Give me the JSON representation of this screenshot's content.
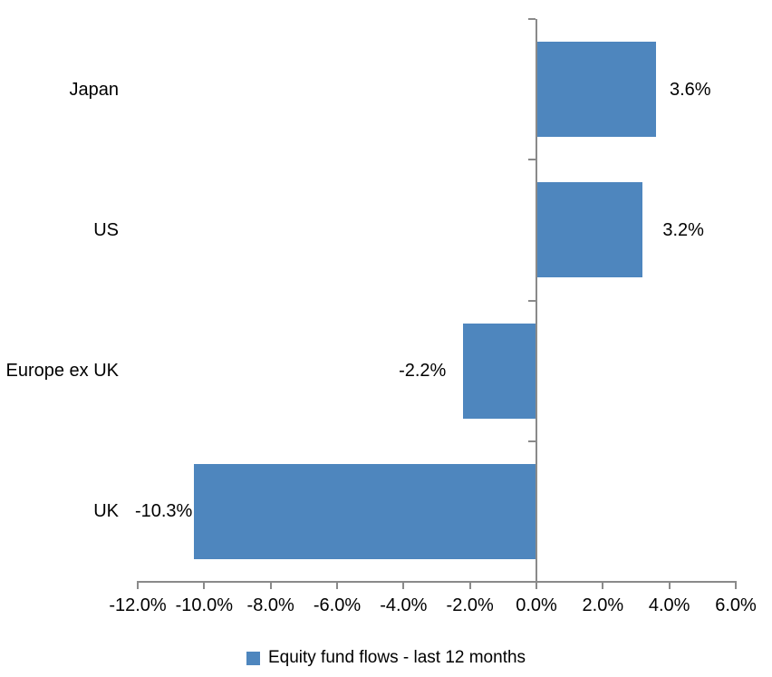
{
  "chart_data": {
    "type": "bar",
    "orientation": "horizontal",
    "title": "",
    "categories": [
      "Japan",
      "US",
      "Europe ex UK",
      "UK"
    ],
    "series": [
      {
        "name": "Equity fund flows - last 12 months",
        "values": [
          3.6,
          3.2,
          -2.2,
          -10.3
        ],
        "data_labels": [
          "3.6%",
          "3.2%",
          "-2.2%",
          "-10.3%"
        ]
      }
    ],
    "xlim": [
      -12,
      6
    ],
    "xtick_step": 2,
    "xtick_labels": [
      "-12.0%",
      "-10.0%",
      "-8.0%",
      "-6.0%",
      "-4.0%",
      "-2.0%",
      "0.0%",
      "2.0%",
      "4.0%",
      "6.0%"
    ],
    "grid": false,
    "legend_position": "bottom",
    "colors": {
      "bar": "#4E86BE",
      "axis": "#8a8a8a",
      "text": "#000000",
      "background": "#ffffff"
    }
  },
  "legend": {
    "label": "Equity fund flows - last 12 months"
  }
}
